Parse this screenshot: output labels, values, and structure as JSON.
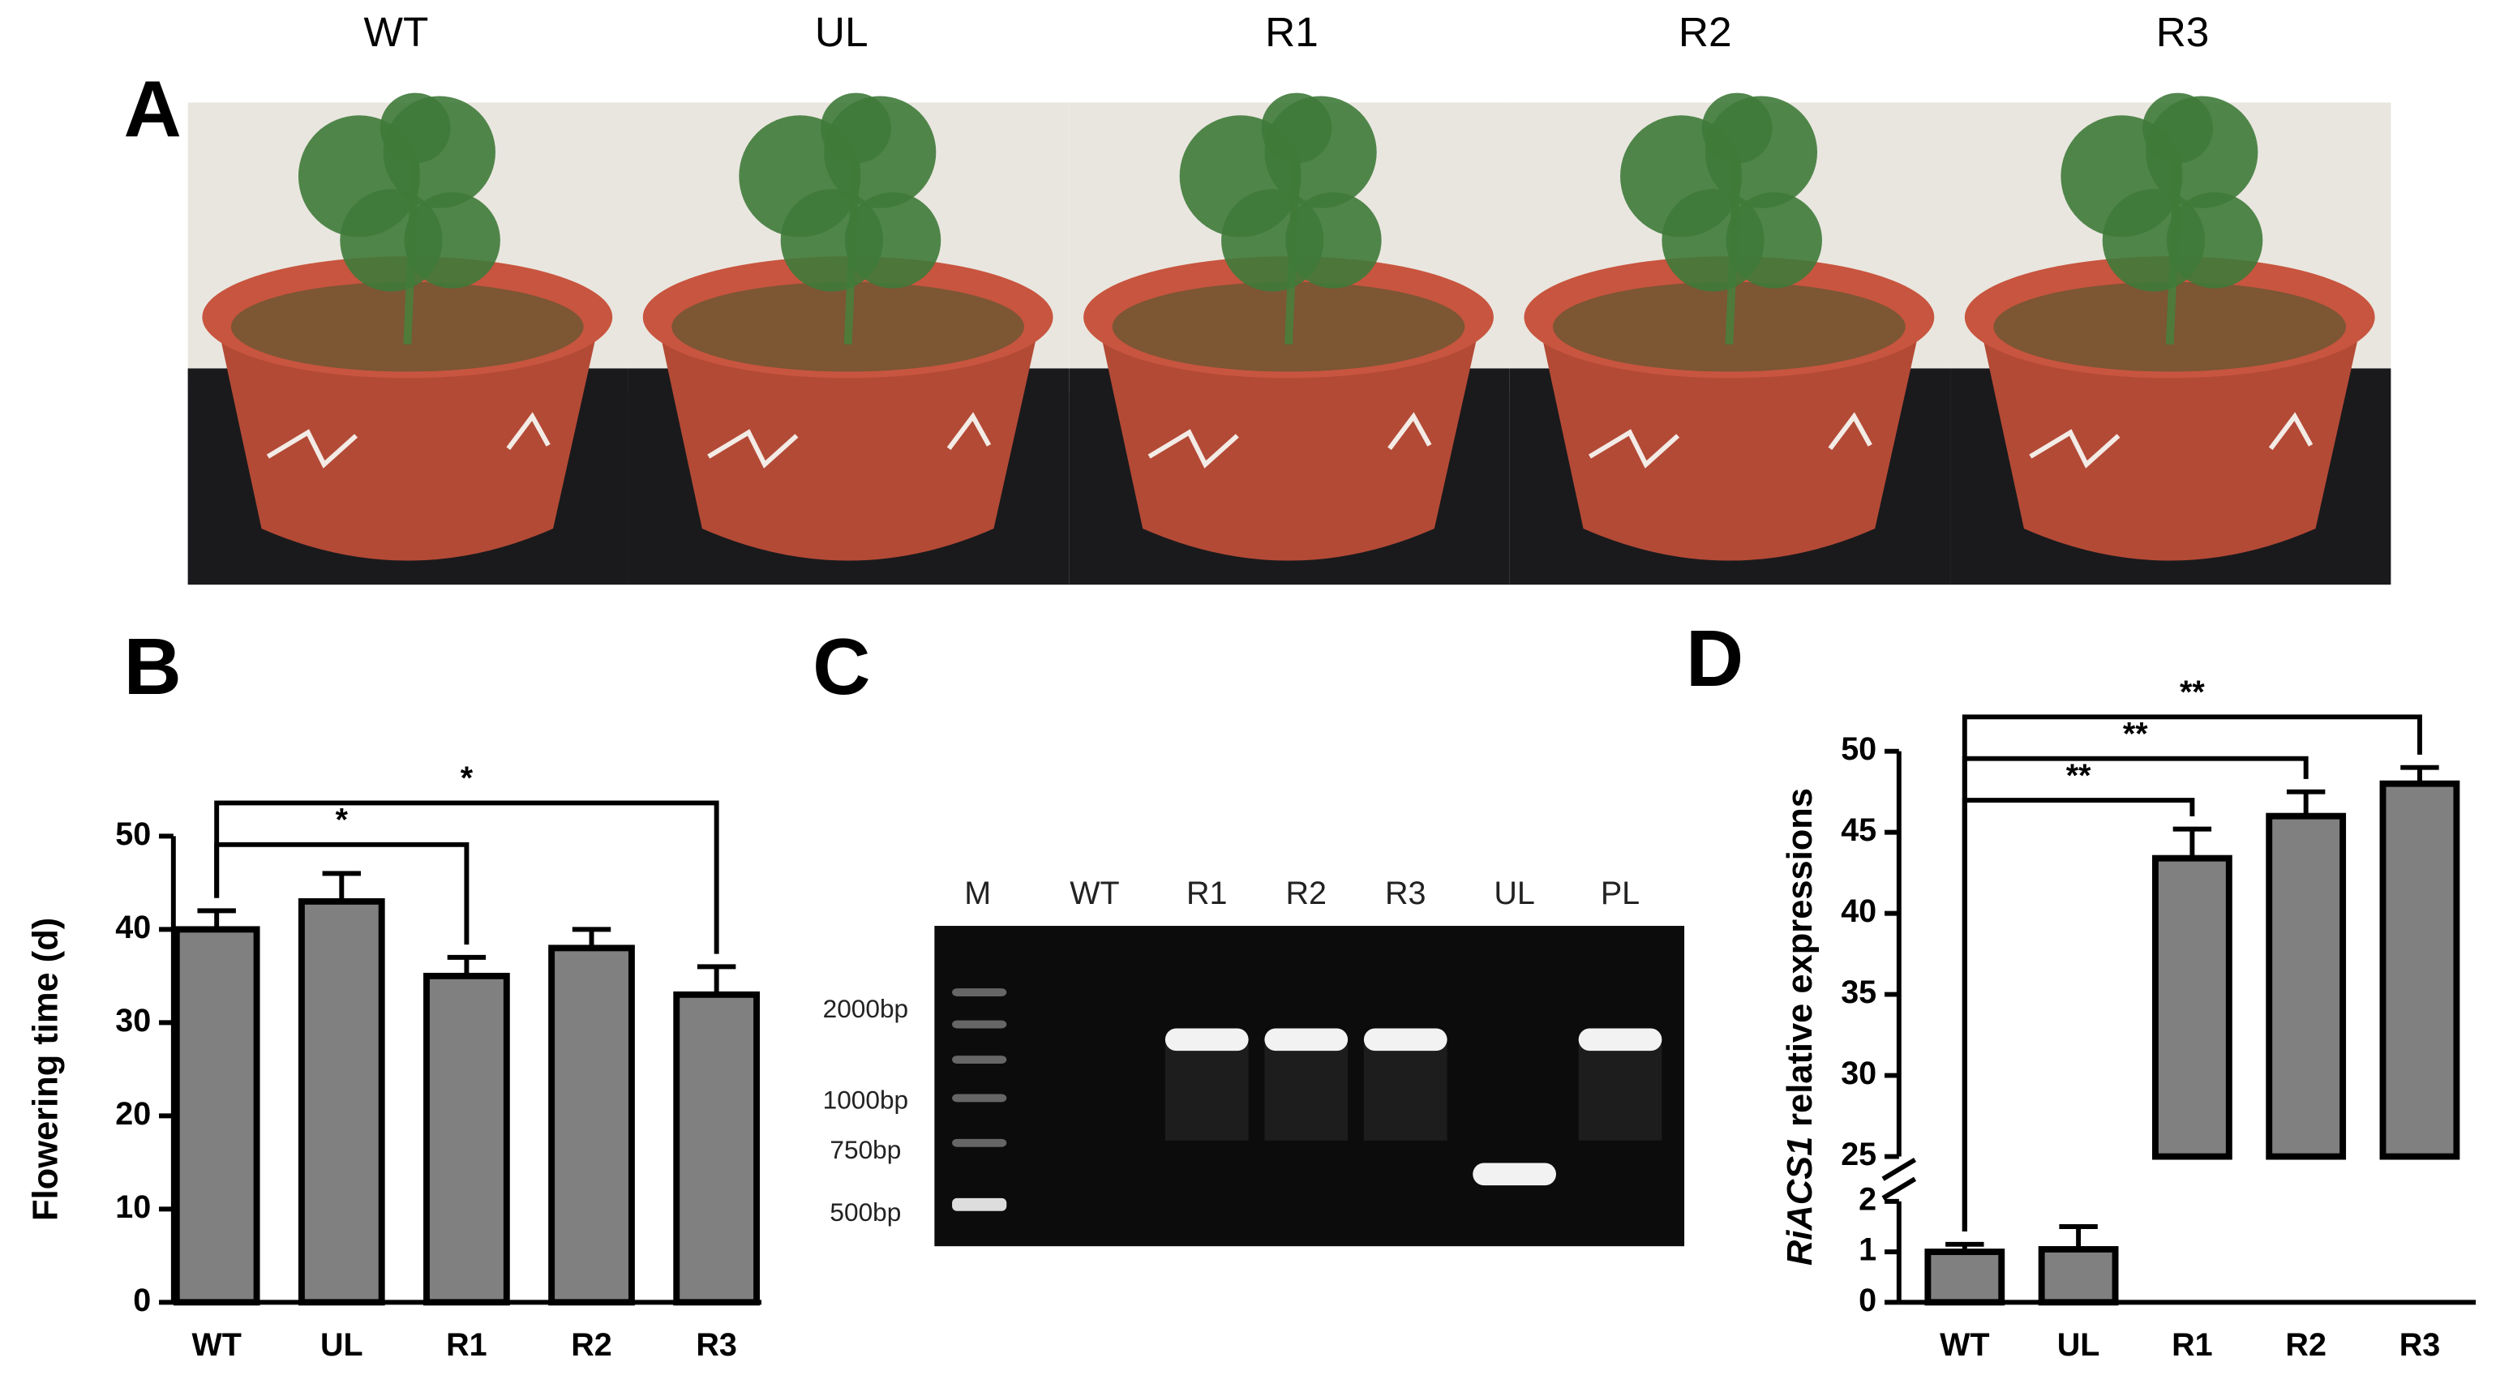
{
  "panel_labels": [
    "A",
    "B",
    "C",
    "D"
  ],
  "photos": {
    "labels": [
      "WT",
      "UL",
      "R1",
      "R2",
      "R3"
    ]
  },
  "gel": {
    "lanes": [
      "M",
      "WT",
      "R1",
      "R2",
      "R3",
      "UL",
      "PL"
    ],
    "markers": [
      "2000bp",
      "1000bp",
      "750bp",
      "500bp"
    ]
  },
  "chart_data": [
    {
      "type": "bar",
      "ylabel": "Flowering time (d)",
      "categories": [
        "WT",
        "UL",
        "R1",
        "R2",
        "R3"
      ],
      "values": [
        40,
        43,
        35,
        38,
        33
      ],
      "errors": [
        2,
        3,
        2,
        2,
        3
      ],
      "color": "#808080",
      "ylim": [
        0,
        50
      ],
      "yticks": [
        0,
        10,
        20,
        30,
        40,
        50
      ],
      "annotations": [
        {
          "text": "*",
          "between": [
            "WT",
            "R1"
          ]
        },
        {
          "text": "*",
          "between": [
            "WT",
            "R3"
          ]
        }
      ]
    },
    {
      "type": "bar",
      "ylabel_italic": "RiACS1",
      "ylabel": "relative expressions",
      "categories": [
        "WT",
        "UL",
        "R1",
        "R2",
        "R3"
      ],
      "values": [
        1,
        1.05,
        43.4,
        46,
        48
      ],
      "errors": [
        0.15,
        0.45,
        1.8,
        1.5,
        1
      ],
      "color": "#808080",
      "ylim": [
        0,
        50
      ],
      "ybreak": [
        2,
        25
      ],
      "yticks": [
        0,
        1,
        2,
        25,
        30,
        35,
        40,
        45,
        50
      ],
      "annotations": [
        {
          "text": "**",
          "between": [
            "WT",
            "R1"
          ]
        },
        {
          "text": "**",
          "between": [
            "WT",
            "R2"
          ]
        },
        {
          "text": "**",
          "between": [
            "WT",
            "R3"
          ]
        }
      ]
    }
  ]
}
